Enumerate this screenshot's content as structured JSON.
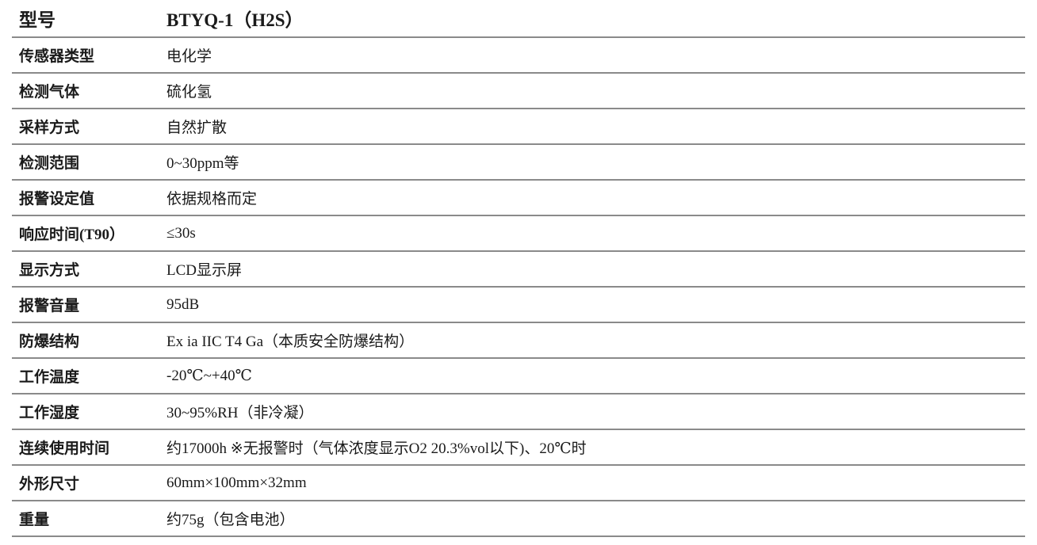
{
  "spec_table": {
    "header": {
      "label": "型号",
      "value": "BTYQ-1（H2S）"
    },
    "rows": [
      {
        "label": "传感器类型",
        "value": "电化学"
      },
      {
        "label": "检测气体",
        "value": "硫化氢"
      },
      {
        "label": "采样方式",
        "value": "自然扩散"
      },
      {
        "label": "检测范围",
        "value": "0~30ppm等"
      },
      {
        "label": "报警设定值",
        "value": "依据规格而定"
      },
      {
        "label": "响应时间(T90）",
        "value": "≤30s"
      },
      {
        "label": "显示方式",
        "value": "LCD显示屏"
      },
      {
        "label": "报警音量",
        "value": "95dB"
      },
      {
        "label": "防爆结构",
        "value": "Ex ia IIC T4 Ga（本质安全防爆结构）"
      },
      {
        "label": "工作温度",
        "value": "-20℃~+40℃"
      },
      {
        "label": "工作湿度",
        "value": "30~95%RH（非冷凝）"
      },
      {
        "label": "连续使用时间",
        "value": "约17000h  ※无报警时（气体浓度显示O2 20.3%vol以下)、20℃时"
      },
      {
        "label": "外形尺寸",
        "value": "60mm×100mm×32mm"
      },
      {
        "label": "重量",
        "value": "约75g（包含电池）"
      }
    ]
  }
}
